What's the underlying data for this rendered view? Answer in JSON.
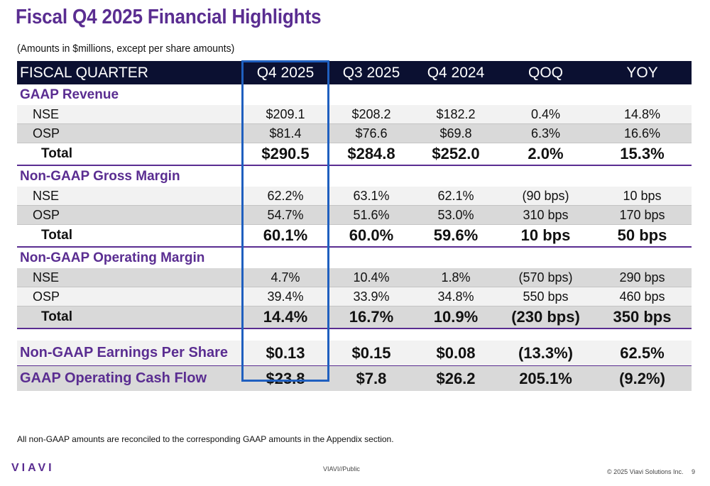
{
  "header": {
    "title": "Fiscal Q4 2025 Financial Highlights",
    "subtitle": "(Amounts in $millions, except per share amounts)"
  },
  "table": {
    "columns": [
      "FISCAL QUARTER",
      "Q4 2025",
      "Q3 2025",
      "Q4 2024",
      "QOQ",
      "YOY"
    ],
    "highlighted_column": "Q4 2025",
    "gaap_revenue": {
      "title": "GAAP Revenue",
      "rows": [
        {
          "label": "NSE",
          "q4_2025": "$209.1",
          "q3_2025": "$208.2",
          "q4_2024": "$182.2",
          "qoq": "0.4%",
          "yoy": "14.8%"
        },
        {
          "label": "OSP",
          "q4_2025": "$81.4",
          "q3_2025": "$76.6",
          "q4_2024": "$69.8",
          "qoq": "6.3%",
          "yoy": "16.6%"
        }
      ],
      "total": {
        "label": "Total",
        "q4_2025": "$290.5",
        "q3_2025": "$284.8",
        "q4_2024": "$252.0",
        "qoq": "2.0%",
        "yoy": "15.3%"
      }
    },
    "gross_margin": {
      "title": "Non-GAAP Gross Margin",
      "rows": [
        {
          "label": "NSE",
          "q4_2025": "62.2%",
          "q3_2025": "63.1%",
          "q4_2024": "62.1%",
          "qoq": "(90 bps)",
          "yoy": "10 bps"
        },
        {
          "label": "OSP",
          "q4_2025": "54.7%",
          "q3_2025": "51.6%",
          "q4_2024": "53.0%",
          "qoq": "310 bps",
          "yoy": "170 bps"
        }
      ],
      "total": {
        "label": "Total",
        "q4_2025": "60.1%",
        "q3_2025": "60.0%",
        "q4_2024": "59.6%",
        "qoq": "10 bps",
        "yoy": "50 bps"
      }
    },
    "operating_margin": {
      "title": "Non-GAAP Operating Margin",
      "rows": [
        {
          "label": "NSE",
          "q4_2025": "4.7%",
          "q3_2025": "10.4%",
          "q4_2024": "1.8%",
          "qoq": "(570 bps)",
          "yoy": "290 bps"
        },
        {
          "label": "OSP",
          "q4_2025": "39.4%",
          "q3_2025": "33.9%",
          "q4_2024": "34.8%",
          "qoq": "550 bps",
          "yoy": "460 bps"
        }
      ],
      "total": {
        "label": "Total",
        "q4_2025": "14.4%",
        "q3_2025": "16.7%",
        "q4_2024": "10.9%",
        "qoq": "(230 bps)",
        "yoy": "350 bps"
      }
    },
    "eps": {
      "label": "Non-GAAP Earnings Per Share",
      "q4_2025": "$0.13",
      "q3_2025": "$0.15",
      "q4_2024": "$0.08",
      "qoq": "(13.3%)",
      "yoy": "62.5%"
    },
    "cash_flow": {
      "label": "GAAP Operating Cash Flow",
      "q4_2025": "$23.8",
      "q3_2025": "$7.8",
      "q4_2024": "$26.2",
      "qoq": "205.1%",
      "yoy": "(9.2%)"
    }
  },
  "footer": {
    "note": "All non-GAAP amounts are reconciled to the corresponding GAAP amounts in the Appendix section.",
    "logo_text": "VIAVI",
    "classification": "VIAVI//Public",
    "copyright": "© 2025 Viavi Solutions Inc.",
    "page_number": "9"
  },
  "colors": {
    "brand_purple": "#5a2d91",
    "header_navy": "#0b1031",
    "highlight_blue": "#1f5fbf",
    "row_light": "#f2f2f2",
    "row_dark": "#d9d9d9"
  }
}
